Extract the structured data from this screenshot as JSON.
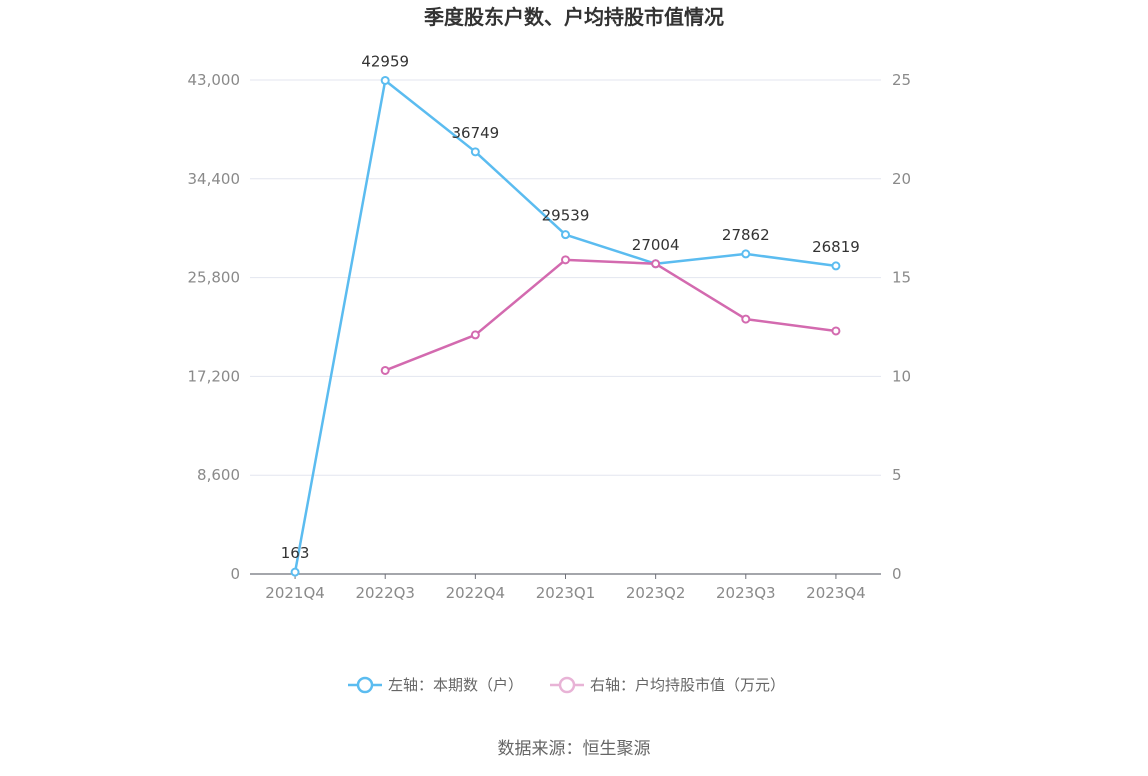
{
  "chart_data": {
    "type": "line",
    "title": "季度股东户数、户均持股市值情况",
    "categories": [
      "2021Q4",
      "2022Q3",
      "2022Q4",
      "2023Q1",
      "2023Q2",
      "2023Q3",
      "2023Q4"
    ],
    "y_left": {
      "ticks": [
        "0",
        "8,600",
        "17,200",
        "25,800",
        "34,400",
        "43,000"
      ],
      "range": [
        0,
        43000
      ]
    },
    "y_right": {
      "ticks": [
        "0",
        "5",
        "10",
        "15",
        "20",
        "25"
      ],
      "range": [
        0,
        25
      ]
    },
    "series": [
      {
        "name": "左轴：本期数（户）",
        "axis": "left",
        "color": "#5bbcf0",
        "values": [
          163,
          42959,
          36749,
          29539,
          27004,
          27862,
          26819
        ],
        "labels": [
          "163",
          "42959",
          "36749",
          "29539",
          "27004",
          "27862",
          "26819"
        ]
      },
      {
        "name": "右轴：户均持股市值（万元）",
        "axis": "right",
        "color": "#d36aaf",
        "values": [
          null,
          10.3,
          12.1,
          15.9,
          15.7,
          12.9,
          12.3
        ]
      }
    ],
    "legend_position": "bottom",
    "grid": true
  },
  "source": "数据来源：恒生聚源"
}
